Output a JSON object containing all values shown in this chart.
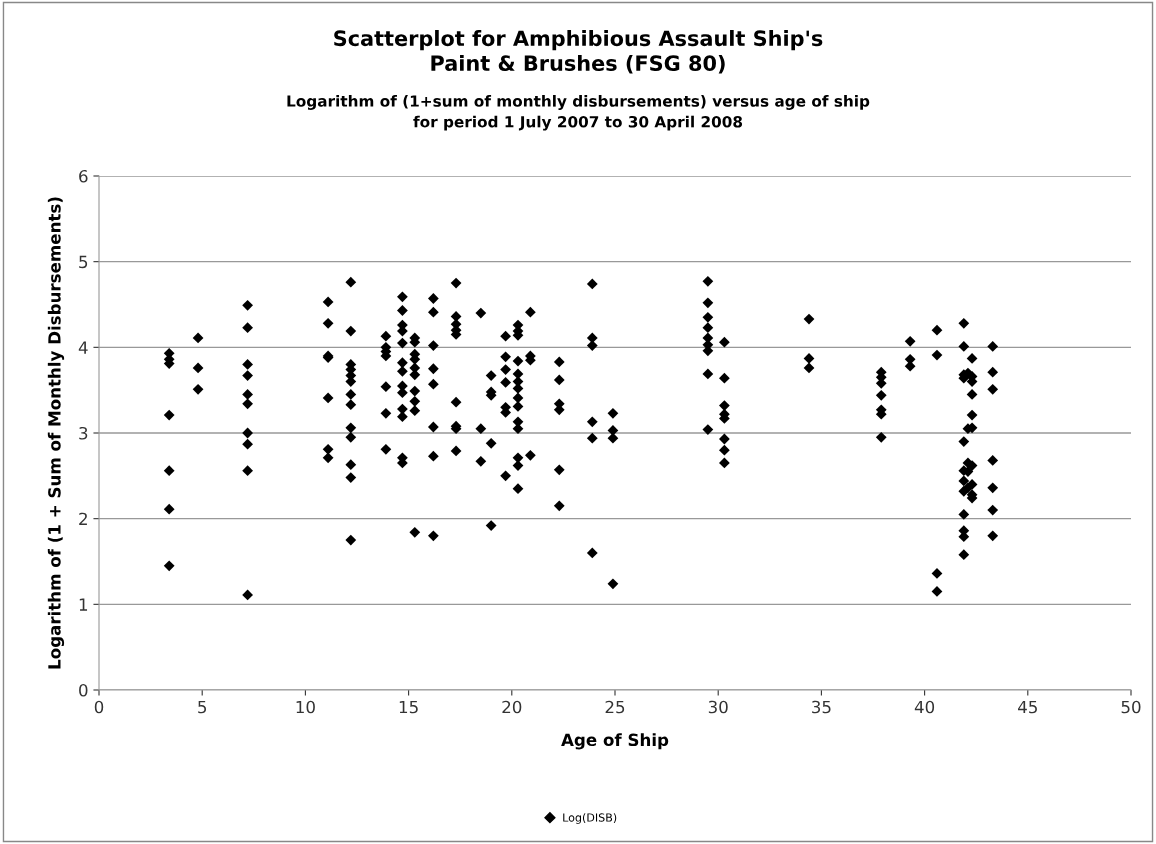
{
  "chart_data": {
    "type": "scatter",
    "title": "Scatterplot for Amphibious Assault Ship's\nPaint & Brushes (FSG 80)",
    "subtitle": "Logarithm of (1+sum of monthly disbursements) versus age of ship\nfor period 1 July 2007 to 30 April 2008",
    "xlabel": "Age of Ship",
    "ylabel": "Logarithm of (1 + Sum of Monthly Disbursements)",
    "xlim": [
      0,
      50
    ],
    "xticks": [
      0,
      5,
      10,
      15,
      20,
      25,
      30,
      35,
      40,
      45,
      50
    ],
    "ylim": [
      0,
      6
    ],
    "yticks": [
      0,
      1,
      2,
      3,
      4,
      5,
      6
    ],
    "grid": "y",
    "legend": "bottom",
    "marker": "diamond",
    "series": [
      {
        "name": "Log(DISB)",
        "color": "#000000",
        "x": [
          3.4,
          3.4,
          3.4,
          3.4,
          3.4,
          3.4,
          3.4,
          4.8,
          4.8,
          4.8,
          7.2,
          7.2,
          7.2,
          7.2,
          7.2,
          7.2,
          7.2,
          7.2,
          7.2,
          7.2,
          11.1,
          11.1,
          11.1,
          11.1,
          11.1,
          11.1,
          11.1,
          12.2,
          12.2,
          12.2,
          12.2,
          12.2,
          12.2,
          12.2,
          12.2,
          12.2,
          12.2,
          12.2,
          12.2,
          12.2,
          13.9,
          13.9,
          13.9,
          13.9,
          13.9,
          13.9,
          13.9,
          14.7,
          14.7,
          14.7,
          14.7,
          14.7,
          14.7,
          14.7,
          14.7,
          14.7,
          14.7,
          14.7,
          14.7,
          14.7,
          15.3,
          15.3,
          15.3,
          15.3,
          15.3,
          15.3,
          15.3,
          15.3,
          15.3,
          15.3,
          16.2,
          16.2,
          16.2,
          16.2,
          16.2,
          16.2,
          16.2,
          16.2,
          17.3,
          17.3,
          17.3,
          17.3,
          17.3,
          17.3,
          17.3,
          17.3,
          17.3,
          18.5,
          18.5,
          18.5,
          19.0,
          19.0,
          19.0,
          19.0,
          19.0,
          19.7,
          19.7,
          19.7,
          19.7,
          19.7,
          19.7,
          19.7,
          20.3,
          20.3,
          20.3,
          20.3,
          20.3,
          20.3,
          20.3,
          20.3,
          20.3,
          20.3,
          20.3,
          20.3,
          20.3,
          20.3,
          20.9,
          20.9,
          20.9,
          20.9,
          22.3,
          22.3,
          22.3,
          22.3,
          22.3,
          22.3,
          23.9,
          23.9,
          23.9,
          23.9,
          23.9,
          23.9,
          24.9,
          24.9,
          24.9,
          24.9,
          29.5,
          29.5,
          29.5,
          29.5,
          29.5,
          29.5,
          29.5,
          29.5,
          29.5,
          30.3,
          30.3,
          30.3,
          30.3,
          30.3,
          30.3,
          30.3,
          30.3,
          34.4,
          34.4,
          34.4,
          37.9,
          37.9,
          37.9,
          37.9,
          37.9,
          37.9,
          37.9,
          39.3,
          39.3,
          39.3,
          40.6,
          40.6,
          40.6,
          40.6,
          41.9,
          41.9,
          41.9,
          41.9,
          41.9,
          41.9,
          41.9,
          41.9,
          41.9,
          41.9,
          41.9,
          41.9,
          42.1,
          42.1,
          42.1,
          42.1,
          42.1,
          42.3,
          42.3,
          42.3,
          42.3,
          42.3,
          42.3,
          42.3,
          42.3,
          42.3,
          42.3,
          43.3,
          43.3,
          43.3,
          43.3,
          43.3,
          43.3,
          43.3
        ],
        "values": [
          3.93,
          3.86,
          3.81,
          3.21,
          2.56,
          2.11,
          1.45,
          4.11,
          3.76,
          3.51,
          4.49,
          4.23,
          3.8,
          3.67,
          3.45,
          3.34,
          3.0,
          2.87,
          2.56,
          1.11,
          4.53,
          4.28,
          3.9,
          3.88,
          3.41,
          2.81,
          2.71,
          4.76,
          4.19,
          3.8,
          3.74,
          3.67,
          3.6,
          3.45,
          3.33,
          3.06,
          2.95,
          2.63,
          2.48,
          1.75,
          4.13,
          4.0,
          3.95,
          3.9,
          3.54,
          3.23,
          2.81,
          4.59,
          4.43,
          4.26,
          4.19,
          4.05,
          3.82,
          3.72,
          3.55,
          3.47,
          3.28,
          3.19,
          2.71,
          2.65,
          4.11,
          4.06,
          3.92,
          3.86,
          3.76,
          3.68,
          3.49,
          3.37,
          3.26,
          1.84,
          4.57,
          4.41,
          4.02,
          3.75,
          3.57,
          3.07,
          2.73,
          1.8,
          4.75,
          4.36,
          4.27,
          4.2,
          4.15,
          3.36,
          3.08,
          3.05,
          2.79,
          4.4,
          3.05,
          2.67,
          3.67,
          3.48,
          3.44,
          2.88,
          1.92,
          4.13,
          3.89,
          3.74,
          3.59,
          3.3,
          3.24,
          2.5,
          4.26,
          4.19,
          4.14,
          3.84,
          3.69,
          3.6,
          3.52,
          3.41,
          3.31,
          3.13,
          3.05,
          2.71,
          2.62,
          2.35,
          4.41,
          3.9,
          3.85,
          2.74,
          3.83,
          3.62,
          3.34,
          3.27,
          2.57,
          2.15,
          4.74,
          4.11,
          4.02,
          3.13,
          2.94,
          1.6,
          3.23,
          3.03,
          2.94,
          1.24,
          4.77,
          4.52,
          4.35,
          4.23,
          4.11,
          4.03,
          3.96,
          3.69,
          3.04,
          4.06,
          3.64,
          3.32,
          3.22,
          3.17,
          2.93,
          2.8,
          2.65,
          4.33,
          3.87,
          3.76,
          3.71,
          3.65,
          3.58,
          3.44,
          3.27,
          3.22,
          2.95,
          4.07,
          3.86,
          3.78,
          4.2,
          3.91,
          1.36,
          1.15,
          4.28,
          4.01,
          3.68,
          3.64,
          2.9,
          2.56,
          2.44,
          2.32,
          2.05,
          1.86,
          1.79,
          1.58,
          3.7,
          3.05,
          2.65,
          2.55,
          2.36,
          3.87,
          3.66,
          3.6,
          3.45,
          3.21,
          3.06,
          2.62,
          2.4,
          2.28,
          2.24,
          4.01,
          3.71,
          3.51,
          2.68,
          2.36,
          2.1,
          1.8
        ]
      }
    ]
  }
}
